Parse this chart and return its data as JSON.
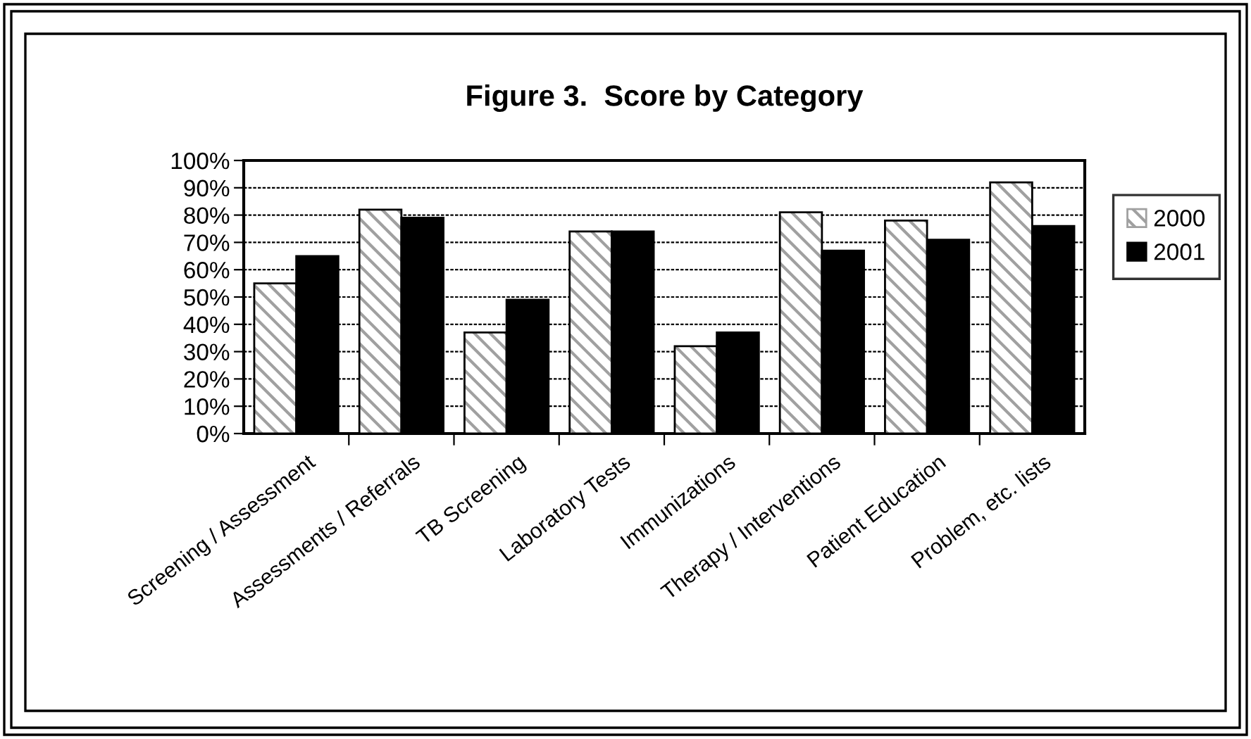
{
  "chart_data": {
    "type": "bar",
    "title": "Figure 3.  Score by Category",
    "categories": [
      "Screening / Assessment",
      "Assessments / Referrals",
      "TB Screening",
      "Laboratory Tests",
      "Immunizations",
      "Therapy / Interventions",
      "Patient Education",
      "Problem, etc. lists"
    ],
    "series": [
      {
        "name": "2000",
        "color": "#a0a0a0",
        "values": [
          55,
          82,
          37,
          74,
          32,
          81,
          78,
          92
        ]
      },
      {
        "name": "2001",
        "color": "#000000",
        "values": [
          65,
          79,
          49,
          74,
          37,
          67,
          71,
          76
        ]
      }
    ],
    "ylim": [
      0,
      100
    ],
    "yticks": [
      {
        "value": 0,
        "label": "0%"
      },
      {
        "value": 10,
        "label": "10%"
      },
      {
        "value": 20,
        "label": "20%"
      },
      {
        "value": 30,
        "label": "30%"
      },
      {
        "value": 40,
        "label": "40%"
      },
      {
        "value": 50,
        "label": "50%"
      },
      {
        "value": 60,
        "label": "60%"
      },
      {
        "value": 70,
        "label": "70%"
      },
      {
        "value": 80,
        "label": "80%"
      },
      {
        "value": 90,
        "label": "90%"
      },
      {
        "value": 100,
        "label": "100%"
      }
    ],
    "grid": "y",
    "legend": "right"
  }
}
